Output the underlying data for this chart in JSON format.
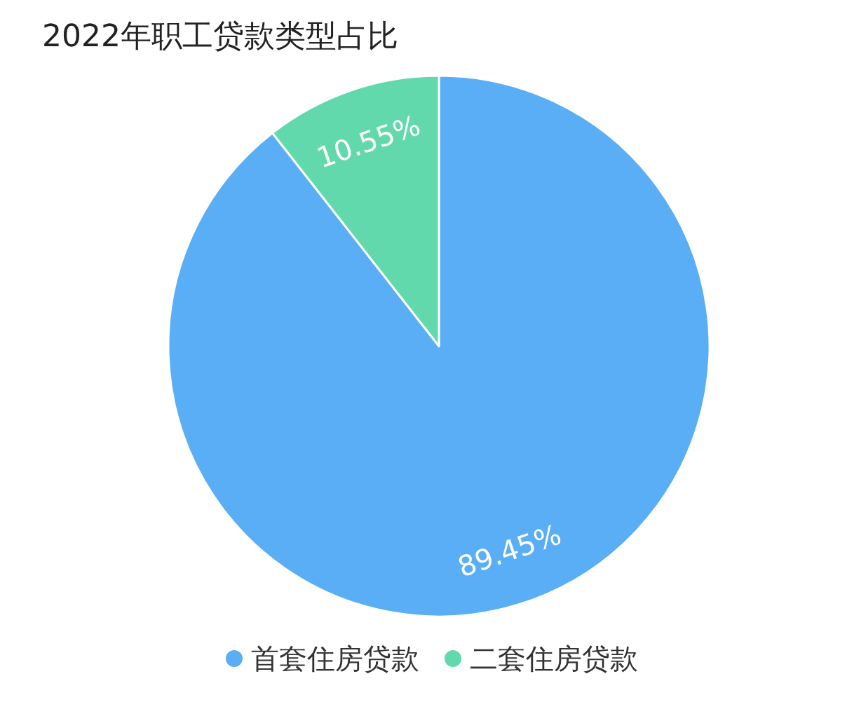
{
  "chart_data": {
    "type": "pie",
    "title": "2022年职工贷款类型占比",
    "categories": [
      "首套住房贷款",
      "二套住房贷款"
    ],
    "values": [
      89.45,
      10.55
    ],
    "value_labels": [
      "89.45%",
      "10.55%"
    ],
    "colors": [
      "#5aaef5",
      "#62d9ad"
    ],
    "legend": "bottom"
  }
}
